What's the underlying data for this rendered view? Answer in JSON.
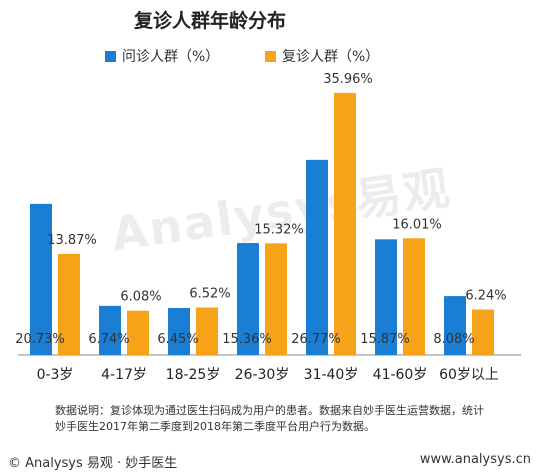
{
  "colors": {
    "series1": "#1a7ed4",
    "series2": "#f6a31a",
    "axis": "#888888"
  },
  "watermark": "Analysys易观",
  "note": {
    "line1": "数据说明：复诊体现为通过医生扫码成为用户的患者。数据来自妙手医生运营数据，统计",
    "line2": "妙手医生2017年第二季度到2018年第二季度平台用户行为数据。"
  },
  "footer": {
    "left": "© Analysys 易观 · 妙手医生",
    "right": "www.analysys.cn"
  },
  "chart_data": {
    "type": "bar",
    "title": "复诊人群年龄分布",
    "categories": [
      "0-3岁",
      "4-17岁",
      "18-25岁",
      "26-30岁",
      "31-40岁",
      "41-60岁",
      "60岁以上"
    ],
    "series": [
      {
        "name": "问诊人群（%）",
        "values": [
          20.73,
          6.74,
          6.45,
          15.36,
          26.77,
          15.87,
          8.08
        ],
        "labels": [
          "20.73%",
          "6.74%",
          "6.45%",
          "15.36%",
          "26.77%",
          "15.87%",
          "8.08%"
        ]
      },
      {
        "name": "复诊人群（%）",
        "values": [
          13.87,
          6.08,
          6.52,
          15.32,
          35.96,
          16.01,
          6.24
        ],
        "labels": [
          "13.87%",
          "6.08%",
          "6.52%",
          "15.32%",
          "35.96%",
          "16.01%",
          "6.24%"
        ]
      }
    ],
    "ylim": [
      0,
      38
    ],
    "legend_position": "top",
    "grid": false
  }
}
